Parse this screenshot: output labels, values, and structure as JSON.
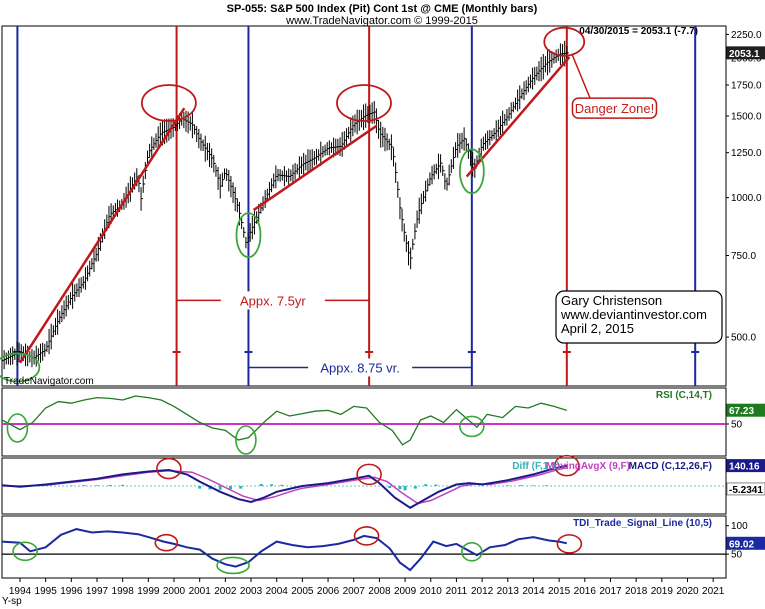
{
  "header": {
    "title": "SP-055:  S&P 500 Index (Pit) Cont 1st @ CME  (Monthly bars)",
    "subtitle": "www.TradeNavigator.com © 1999-2015",
    "last_value_text": "04/30/2015 = 2053.1 (-7.7)"
  },
  "watermark": "TradeNavigator.com",
  "y_axis_label": "Y-sp",
  "chart_data": [
    {
      "type": "bar",
      "name": "S&P 500 monthly price",
      "x_range": [
        1993.3,
        2021.5
      ],
      "y_log": true,
      "ylim": [
        400,
        2300
      ],
      "y_ticks": [
        {
          "value": 2250,
          "label": "2250.0"
        },
        {
          "value": 2000,
          "label": "2000.0"
        },
        {
          "value": 1750,
          "label": "1750.0"
        },
        {
          "value": 1500,
          "label": "1500.0"
        },
        {
          "value": 1250,
          "label": "1250.0"
        },
        {
          "value": 1000,
          "label": "1000.0"
        },
        {
          "value": 750,
          "label": "750.0"
        },
        {
          "value": 500,
          "label": "500.0"
        }
      ],
      "last_value": {
        "value": 2053.1,
        "label": "2053.1"
      },
      "price_path": [
        [
          1993.3,
          445
        ],
        [
          1994.0,
          465
        ],
        [
          1994.5,
          450
        ],
        [
          1995.0,
          470
        ],
        [
          1995.5,
          545
        ],
        [
          1996.0,
          610
        ],
        [
          1996.5,
          660
        ],
        [
          1997.0,
          760
        ],
        [
          1997.5,
          920
        ],
        [
          1998.0,
          970
        ],
        [
          1998.6,
          1120
        ],
        [
          1998.7,
          980
        ],
        [
          1999.0,
          1250
        ],
        [
          1999.5,
          1380
        ],
        [
          2000.0,
          1420
        ],
        [
          2000.3,
          1480
        ],
        [
          2000.7,
          1440
        ],
        [
          2001.0,
          1330
        ],
        [
          2001.5,
          1210
        ],
        [
          2001.8,
          1060
        ],
        [
          2002.0,
          1140
        ],
        [
          2002.5,
          950
        ],
        [
          2002.8,
          800
        ],
        [
          2003.0,
          850
        ],
        [
          2003.5,
          980
        ],
        [
          2004.0,
          1120
        ],
        [
          2004.5,
          1110
        ],
        [
          2005.0,
          1180
        ],
        [
          2005.5,
          1220
        ],
        [
          2006.0,
          1280
        ],
        [
          2006.5,
          1290
        ],
        [
          2007.0,
          1440
        ],
        [
          2007.5,
          1510
        ],
        [
          2007.8,
          1530
        ],
        [
          2008.0,
          1380
        ],
        [
          2008.5,
          1280
        ],
        [
          2008.8,
          950
        ],
        [
          2009.0,
          820
        ],
        [
          2009.2,
          730
        ],
        [
          2009.5,
          920
        ],
        [
          2010.0,
          1110
        ],
        [
          2010.4,
          1190
        ],
        [
          2010.6,
          1050
        ],
        [
          2011.0,
          1290
        ],
        [
          2011.3,
          1340
        ],
        [
          2011.7,
          1150
        ],
        [
          2012.0,
          1300
        ],
        [
          2012.5,
          1380
        ],
        [
          2013.0,
          1500
        ],
        [
          2013.5,
          1660
        ],
        [
          2014.0,
          1820
        ],
        [
          2014.5,
          1950
        ],
        [
          2015.0,
          2040
        ],
        [
          2015.3,
          2053
        ]
      ],
      "trend_lines": [
        {
          "from": [
            1994.0,
            440
          ],
          "to": [
            2000.4,
            1560
          ]
        },
        {
          "from": [
            2003.1,
            940
          ],
          "to": [
            2007.9,
            1430
          ]
        },
        {
          "from": [
            2011.4,
            1110
          ],
          "to": [
            2015.4,
            2010
          ]
        }
      ],
      "vertical_lines": [
        {
          "x": 1993.9,
          "color": "#1a2a9a"
        },
        {
          "x": 2000.1,
          "color": "#c01818"
        },
        {
          "x": 2002.9,
          "color": "#1a2a9a"
        },
        {
          "x": 2007.6,
          "color": "#c01818"
        },
        {
          "x": 2011.6,
          "color": "#1a2a9a"
        },
        {
          "x": 2015.3,
          "color": "#c01818"
        },
        {
          "x": 2020.3,
          "color": "#1a2a9a"
        }
      ],
      "circles": [
        {
          "x": 1993.9,
          "y": 430,
          "rx": 22,
          "ry": 14,
          "color": "#3aa63a"
        },
        {
          "x": 2002.9,
          "y": 830,
          "rx": 12,
          "ry": 22,
          "color": "#3aa63a"
        },
        {
          "x": 2011.6,
          "y": 1140,
          "rx": 12,
          "ry": 22,
          "color": "#3aa63a"
        },
        {
          "x": 1999.8,
          "y": 1600,
          "rx": 27,
          "ry": 18,
          "color": "#c01818"
        },
        {
          "x": 2007.4,
          "y": 1600,
          "rx": 27,
          "ry": 18,
          "color": "#c01818"
        },
        {
          "x": 2015.2,
          "y": 2170,
          "rx": 20,
          "ry": 14,
          "color": "#c01818"
        }
      ],
      "spans": [
        {
          "label": "Appx. 7.5yr",
          "from": 2000.1,
          "to": 2007.6,
          "y": 600,
          "color": "#c01818"
        },
        {
          "label": "Appx. 8.75 vr.",
          "from": 2002.9,
          "to": 2011.6,
          "y": 430,
          "color": "#1a2a9a"
        }
      ],
      "callout": {
        "label": "Danger Zone!",
        "x": 2017.0,
        "y": 1560,
        "arrow_to": [
          2015.5,
          2040
        ]
      },
      "author_box": {
        "lines": [
          "Gary Christenson",
          "www.deviantinvestor.com",
          "April 2, 2015"
        ]
      }
    },
    {
      "type": "line",
      "name": "RSI (C,14,T)",
      "label": "RSI (C,14,T)",
      "ylim": [
        15,
        90
      ],
      "reference_line": 50,
      "y_ticks": [
        {
          "value": 50,
          "label": "50"
        }
      ],
      "last_value": {
        "value": 67.23,
        "label": "67.23"
      },
      "path": [
        [
          1993.3,
          55
        ],
        [
          1994.0,
          43
        ],
        [
          1994.5,
          52
        ],
        [
          1995.0,
          70
        ],
        [
          1995.5,
          78
        ],
        [
          1996.0,
          76
        ],
        [
          1996.5,
          80
        ],
        [
          1997.0,
          83
        ],
        [
          1997.5,
          82
        ],
        [
          1998.0,
          80
        ],
        [
          1998.5,
          85
        ],
        [
          1999.0,
          83
        ],
        [
          1999.5,
          80
        ],
        [
          2000.0,
          72
        ],
        [
          2000.5,
          62
        ],
        [
          2001.0,
          52
        ],
        [
          2001.5,
          45
        ],
        [
          2002.0,
          42
        ],
        [
          2002.5,
          30
        ],
        [
          2002.9,
          33
        ],
        [
          2003.5,
          52
        ],
        [
          2004.0,
          66
        ],
        [
          2004.5,
          60
        ],
        [
          2005.0,
          63
        ],
        [
          2005.5,
          66
        ],
        [
          2006.0,
          67
        ],
        [
          2006.5,
          62
        ],
        [
          2007.0,
          72
        ],
        [
          2007.5,
          70
        ],
        [
          2008.0,
          52
        ],
        [
          2008.5,
          42
        ],
        [
          2008.9,
          24
        ],
        [
          2009.2,
          30
        ],
        [
          2009.6,
          55
        ],
        [
          2010.0,
          60
        ],
        [
          2010.5,
          52
        ],
        [
          2011.0,
          68
        ],
        [
          2011.5,
          54
        ],
        [
          2011.8,
          46
        ],
        [
          2012.2,
          62
        ],
        [
          2012.8,
          58
        ],
        [
          2013.3,
          72
        ],
        [
          2013.8,
          70
        ],
        [
          2014.3,
          76
        ],
        [
          2014.8,
          72
        ],
        [
          2015.3,
          67
        ]
      ],
      "circles": [
        {
          "x": 1993.9,
          "y": 45,
          "rx": 10,
          "ry": 14,
          "color": "#3aa63a"
        },
        {
          "x": 2002.8,
          "y": 30,
          "rx": 10,
          "ry": 14,
          "color": "#3aa63a"
        },
        {
          "x": 2011.6,
          "y": 47,
          "rx": 12,
          "ry": 10,
          "color": "#3aa63a"
        }
      ]
    },
    {
      "type": "line",
      "name": "MACD",
      "labels": {
        "diff": "Diff (F,1,1)",
        "avg": "MovingAvgX (9,F)",
        "macd": "MACD (C,12,26,F)"
      },
      "ylim": [
        -165,
        165
      ],
      "last_value_macd": {
        "value": 140.16,
        "label": "140.16"
      },
      "last_value_diff": {
        "value": -5.2341,
        "label": "-5.2341"
      },
      "macd_path": [
        [
          1993.3,
          5
        ],
        [
          1994.0,
          -5
        ],
        [
          1995.0,
          10
        ],
        [
          1996.0,
          30
        ],
        [
          1997.0,
          50
        ],
        [
          1998.0,
          80
        ],
        [
          1999.0,
          100
        ],
        [
          1999.8,
          110
        ],
        [
          2000.5,
          80
        ],
        [
          2001.0,
          30
        ],
        [
          2001.8,
          -40
        ],
        [
          2002.5,
          -90
        ],
        [
          2003.0,
          -110
        ],
        [
          2003.5,
          -80
        ],
        [
          2004.0,
          -40
        ],
        [
          2004.5,
          -20
        ],
        [
          2005.0,
          0
        ],
        [
          2006.0,
          20
        ],
        [
          2007.0,
          50
        ],
        [
          2007.6,
          70
        ],
        [
          2008.0,
          20
        ],
        [
          2008.6,
          -80
        ],
        [
          2009.2,
          -150
        ],
        [
          2009.7,
          -100
        ],
        [
          2010.3,
          -40
        ],
        [
          2011.0,
          10
        ],
        [
          2011.5,
          20
        ],
        [
          2012.0,
          10
        ],
        [
          2013.0,
          40
        ],
        [
          2014.0,
          80
        ],
        [
          2014.8,
          120
        ],
        [
          2015.3,
          140
        ]
      ],
      "avg_path": [
        [
          1993.3,
          0
        ],
        [
          1994.0,
          0
        ],
        [
          1995.0,
          5
        ],
        [
          1996.0,
          25
        ],
        [
          1997.0,
          45
        ],
        [
          1998.0,
          70
        ],
        [
          1999.0,
          95
        ],
        [
          1999.8,
          105
        ],
        [
          2000.7,
          95
        ],
        [
          2001.3,
          50
        ],
        [
          2002.0,
          -10
        ],
        [
          2002.7,
          -70
        ],
        [
          2003.3,
          -100
        ],
        [
          2003.9,
          -75
        ],
        [
          2004.5,
          -40
        ],
        [
          2005.0,
          -15
        ],
        [
          2006.0,
          10
        ],
        [
          2007.0,
          40
        ],
        [
          2007.8,
          60
        ],
        [
          2008.3,
          30
        ],
        [
          2008.9,
          -50
        ],
        [
          2009.5,
          -120
        ],
        [
          2010.0,
          -100
        ],
        [
          2010.6,
          -50
        ],
        [
          2011.2,
          0
        ],
        [
          2011.8,
          15
        ],
        [
          2012.3,
          10
        ],
        [
          2013.2,
          35
        ],
        [
          2014.2,
          75
        ],
        [
          2015.0,
          115
        ],
        [
          2015.3,
          125
        ]
      ],
      "diff_bars": [
        [
          1996.0,
          4
        ],
        [
          1996.5,
          6
        ],
        [
          1997.0,
          5
        ],
        [
          1997.5,
          7
        ],
        [
          1998.0,
          8
        ],
        [
          2001.0,
          -18
        ],
        [
          2001.4,
          -24
        ],
        [
          2001.8,
          -26
        ],
        [
          2002.2,
          -22
        ],
        [
          2002.6,
          -18
        ],
        [
          2003.4,
          14
        ],
        [
          2003.8,
          12
        ],
        [
          2004.2,
          8
        ],
        [
          2008.4,
          -14
        ],
        [
          2008.8,
          -22
        ],
        [
          2009.0,
          -30
        ],
        [
          2009.4,
          -18
        ],
        [
          2009.8,
          12
        ],
        [
          2010.2,
          10
        ],
        [
          2013.0,
          5
        ],
        [
          2013.5,
          6
        ],
        [
          2014.0,
          4
        ],
        [
          2014.5,
          5
        ]
      ],
      "circles": [
        {
          "x": 1999.8,
          "y": 120,
          "rx": 12,
          "ry": 10,
          "color": "#c01818"
        },
        {
          "x": 2007.6,
          "y": 80,
          "rx": 12,
          "ry": 10,
          "color": "#c01818"
        },
        {
          "x": 2015.3,
          "y": 140,
          "rx": 12,
          "ry": 10,
          "color": "#c01818"
        }
      ]
    },
    {
      "type": "line",
      "name": "TDI_Trade_Signal_Line (10,5)",
      "label": "TDI_Trade_Signal_Line (10,5)",
      "ylim": [
        15,
        110
      ],
      "reference_line": 50,
      "y_ticks": [
        {
          "value": 100,
          "label": "100"
        },
        {
          "value": 50,
          "label": "50"
        }
      ],
      "last_value": {
        "value": 69.02,
        "label": "69.02"
      },
      "path": [
        [
          1993.3,
          72
        ],
        [
          1994.0,
          70
        ],
        [
          1994.4,
          55
        ],
        [
          1995.0,
          62
        ],
        [
          1995.6,
          84
        ],
        [
          1996.2,
          94
        ],
        [
          1996.8,
          88
        ],
        [
          1997.4,
          90
        ],
        [
          1998.0,
          88
        ],
        [
          1998.6,
          85
        ],
        [
          1999.0,
          80
        ],
        [
          1999.6,
          72
        ],
        [
          2000.0,
          68
        ],
        [
          2000.5,
          62
        ],
        [
          2001.0,
          58
        ],
        [
          2001.5,
          42
        ],
        [
          2002.0,
          32
        ],
        [
          2002.4,
          28
        ],
        [
          2002.9,
          36
        ],
        [
          2003.4,
          55
        ],
        [
          2004.0,
          72
        ],
        [
          2004.6,
          66
        ],
        [
          2005.2,
          62
        ],
        [
          2005.8,
          64
        ],
        [
          2006.4,
          68
        ],
        [
          2007.0,
          75
        ],
        [
          2007.4,
          82
        ],
        [
          2007.9,
          78
        ],
        [
          2008.4,
          60
        ],
        [
          2008.8,
          35
        ],
        [
          2009.2,
          22
        ],
        [
          2009.6,
          42
        ],
        [
          2010.1,
          72
        ],
        [
          2010.6,
          64
        ],
        [
          2011.0,
          68
        ],
        [
          2011.4,
          58
        ],
        [
          2011.8,
          48
        ],
        [
          2012.3,
          62
        ],
        [
          2012.9,
          66
        ],
        [
          2013.4,
          76
        ],
        [
          2014.0,
          80
        ],
        [
          2014.6,
          74
        ],
        [
          2015.0,
          72
        ],
        [
          2015.3,
          69
        ]
      ],
      "circles": [
        {
          "x": 1994.2,
          "y": 55,
          "rx": 12,
          "ry": 9,
          "color": "#3aa63a"
        },
        {
          "x": 2002.3,
          "y": 30,
          "rx": 16,
          "ry": 8,
          "color": "#3aa63a"
        },
        {
          "x": 2011.6,
          "y": 54,
          "rx": 10,
          "ry": 9,
          "color": "#3aa63a"
        },
        {
          "x": 1999.7,
          "y": 70,
          "rx": 11,
          "ry": 8,
          "color": "#c01818"
        },
        {
          "x": 2007.5,
          "y": 82,
          "rx": 12,
          "ry": 9,
          "color": "#c01818"
        },
        {
          "x": 2015.4,
          "y": 68,
          "rx": 12,
          "ry": 9,
          "color": "#c01818"
        }
      ]
    }
  ],
  "x_axis": {
    "ticks": [
      "1994",
      "1995",
      "1996",
      "1997",
      "1998",
      "1999",
      "2000",
      "2001",
      "2002",
      "2003",
      "2004",
      "2005",
      "2006",
      "2007",
      "2008",
      "2009",
      "2010",
      "2011",
      "2012",
      "2013",
      "2014",
      "2015",
      "2016",
      "2017",
      "2018",
      "2019",
      "2020",
      "2021"
    ]
  },
  "colors": {
    "price": "#000000",
    "rsi": "#207a20",
    "macd": "#1a1a8a",
    "avg": "#c040c0",
    "diff": "#33b3b3",
    "tdi": "#1a2aa0",
    "ref_rsi": "#cc33cc",
    "ref_tdi": "#000000",
    "trend": "#c01818",
    "badge_price": "#202020",
    "badge_rsi": "#1f7a1f",
    "badge_macd": "#1a1a8a",
    "badge_diff": "#ffffff",
    "badge_tdi": "#1a2aa0"
  }
}
